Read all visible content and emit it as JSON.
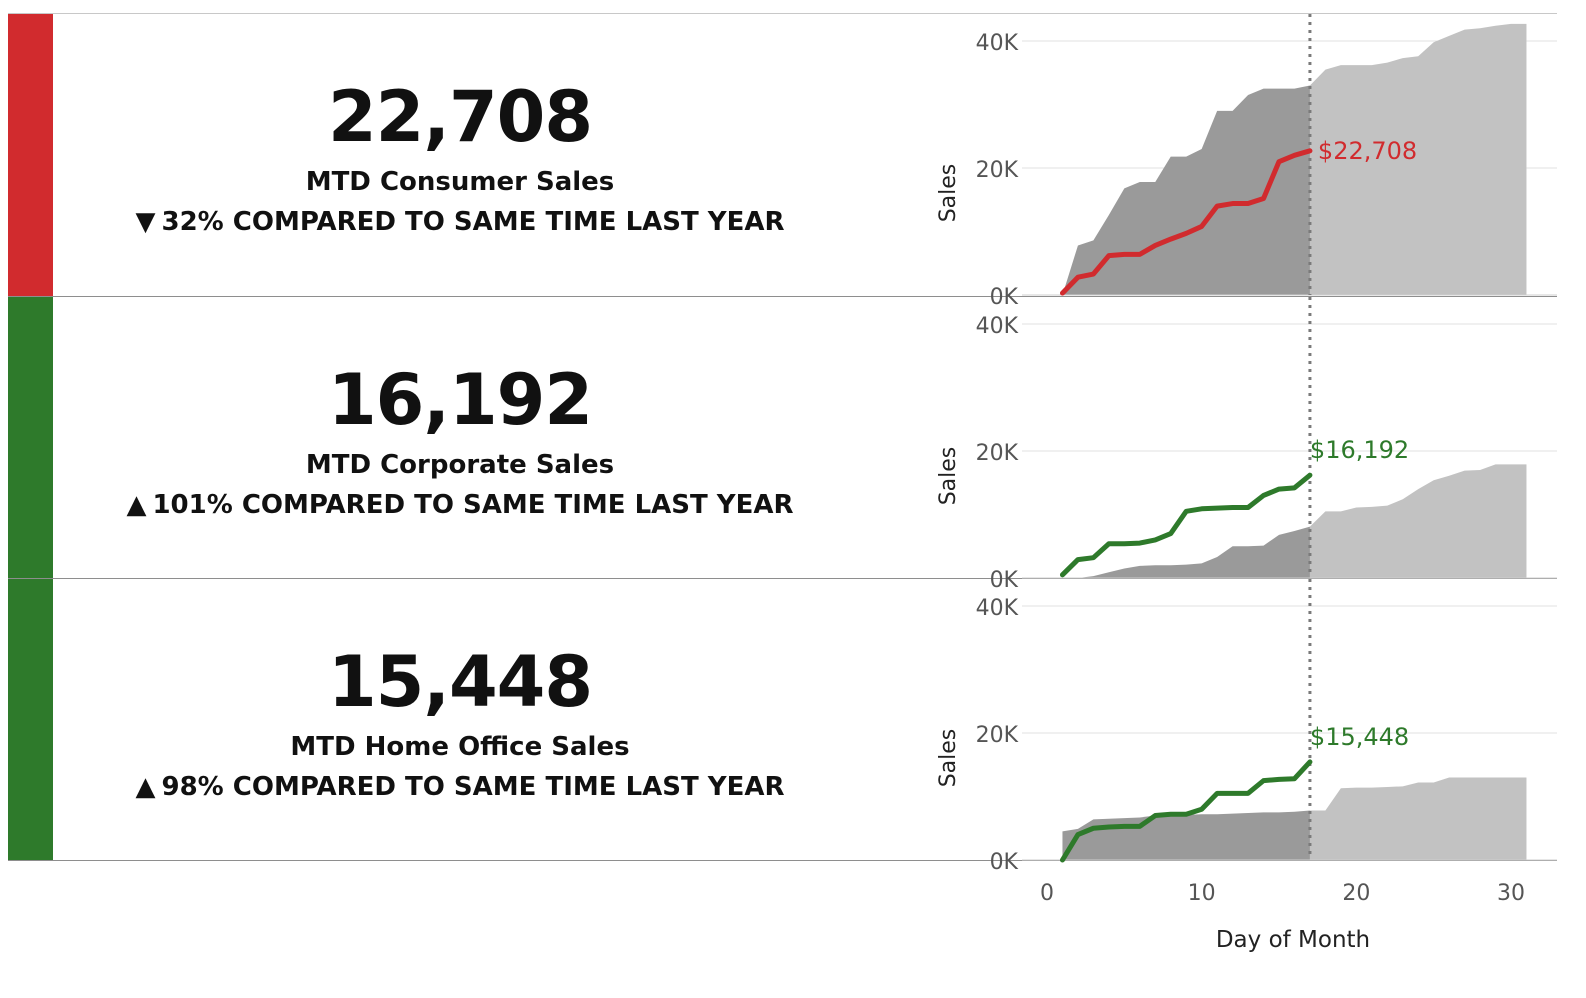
{
  "colors": {
    "negative": "#d12b2e",
    "positive": "#2e7a2b",
    "prior_year_area": "#c2c2c2",
    "prior_year_area_mtd": "#9a9a9a"
  },
  "rows": [
    {
      "value": "22,708",
      "label": "MTD Consumer Sales",
      "arrow": "▼",
      "arrow_icon": "triangle-down-icon",
      "comparison": "32% COMPARED TO SAME TIME LAST YEAR",
      "status": "negative"
    },
    {
      "value": "16,192",
      "label": "MTD Corporate Sales",
      "arrow": "▲",
      "arrow_icon": "triangle-up-icon",
      "comparison": "101% COMPARED TO SAME TIME LAST YEAR",
      "status": "positive"
    },
    {
      "value": "15,448",
      "label": "MTD Home Office Sales",
      "arrow": "▲",
      "arrow_icon": "triangle-up-icon",
      "comparison": "98% COMPARED TO SAME TIME LAST YEAR",
      "status": "positive"
    }
  ],
  "chart_data": [
    {
      "type": "area",
      "ylabel": "Sales",
      "xlabel": "Day of Month",
      "xlim": [
        0,
        31
      ],
      "ylim": [
        0,
        40000
      ],
      "y_ticks": [
        0,
        20000,
        40000
      ],
      "y_tick_labels": [
        "0K",
        "20K",
        "40K"
      ],
      "x_ticks": [
        0,
        10,
        20,
        30
      ],
      "x_tick_labels": [
        "0",
        "10",
        "20",
        "30"
      ],
      "reference_day": 17,
      "end_label": "$22,708",
      "series": [
        {
          "type": "area",
          "x": [
            1,
            2,
            3,
            4,
            5,
            6,
            7,
            8,
            9,
            10,
            11,
            12,
            13,
            14,
            15,
            16,
            17,
            18,
            19,
            20,
            21,
            22,
            23,
            24,
            25,
            26,
            27,
            28,
            29,
            30,
            31
          ],
          "values": [
            0,
            7800,
            8600,
            12600,
            16800,
            17800,
            17800,
            21800,
            21800,
            23000,
            29000,
            29000,
            31500,
            32500,
            32500,
            32500,
            33000,
            35500,
            36200,
            36200,
            36200,
            36600,
            37300,
            37600,
            39800,
            40800,
            41800,
            42000,
            42400,
            42700,
            42700
          ]
        },
        {
          "type": "line",
          "x": [
            1,
            2,
            3,
            4,
            5,
            6,
            7,
            8,
            9,
            10,
            11,
            12,
            13,
            14,
            15,
            16,
            17
          ],
          "values": [
            300,
            2800,
            3300,
            6200,
            6400,
            6400,
            7800,
            8800,
            9700,
            10800,
            14000,
            14400,
            14400,
            15200,
            21000,
            22000,
            22708
          ]
        }
      ]
    },
    {
      "type": "area",
      "ylabel": "Sales",
      "xlabel": "Day of Month",
      "xlim": [
        0,
        31
      ],
      "ylim": [
        0,
        40000
      ],
      "y_ticks": [
        0,
        20000,
        40000
      ],
      "y_tick_labels": [
        "0K",
        "20K",
        "40K"
      ],
      "x_ticks": [
        0,
        10,
        20,
        30
      ],
      "x_tick_labels": [
        "0",
        "10",
        "20",
        "30"
      ],
      "reference_day": 17,
      "end_label": "$16,192",
      "series": [
        {
          "type": "area",
          "x": [
            1,
            2,
            3,
            4,
            5,
            6,
            7,
            8,
            9,
            10,
            11,
            12,
            13,
            14,
            15,
            16,
            17,
            18,
            19,
            20,
            21,
            22,
            23,
            24,
            25,
            26,
            27,
            28,
            29,
            30,
            31
          ],
          "values": [
            0,
            0,
            300,
            900,
            1500,
            1900,
            2000,
            2000,
            2100,
            2300,
            3300,
            5000,
            5000,
            5100,
            6800,
            7400,
            8100,
            10500,
            10500,
            11100,
            11200,
            11400,
            12400,
            14000,
            15400,
            16100,
            16900,
            17000,
            17900,
            17900,
            17900
          ]
        },
        {
          "type": "line",
          "x": [
            1,
            2,
            3,
            4,
            5,
            6,
            7,
            8,
            9,
            10,
            11,
            12,
            13,
            14,
            15,
            16,
            17
          ],
          "values": [
            500,
            2900,
            3200,
            5400,
            5400,
            5500,
            6000,
            7000,
            10500,
            10900,
            11000,
            11100,
            11100,
            13000,
            14000,
            14200,
            16192
          ]
        }
      ]
    },
    {
      "type": "area",
      "ylabel": "Sales",
      "xlabel": "Day of Month",
      "xlim": [
        0,
        31
      ],
      "ylim": [
        0,
        40000
      ],
      "y_ticks": [
        0,
        20000,
        40000
      ],
      "y_tick_labels": [
        "0K",
        "20K",
        "40K"
      ],
      "x_ticks": [
        0,
        10,
        20,
        30
      ],
      "x_tick_labels": [
        "0",
        "10",
        "20",
        "30"
      ],
      "reference_day": 17,
      "end_label": "$15,448",
      "series": [
        {
          "type": "area",
          "x": [
            1,
            2,
            3,
            4,
            5,
            6,
            7,
            8,
            9,
            10,
            11,
            12,
            13,
            14,
            15,
            16,
            17,
            18,
            19,
            20,
            21,
            22,
            23,
            24,
            25,
            26,
            27,
            28,
            29,
            30,
            31
          ],
          "values": [
            4500,
            4900,
            6400,
            6500,
            6600,
            6700,
            7000,
            7000,
            7100,
            7200,
            7200,
            7300,
            7400,
            7500,
            7500,
            7600,
            7800,
            7800,
            11300,
            11400,
            11400,
            11500,
            11600,
            12200,
            12200,
            13000,
            13000,
            13000,
            13000,
            13000,
            13000
          ]
        },
        {
          "type": "line",
          "x": [
            1,
            2,
            3,
            4,
            5,
            6,
            7,
            8,
            9,
            10,
            11,
            12,
            13,
            14,
            15,
            16,
            17
          ],
          "values": [
            0,
            4000,
            5000,
            5200,
            5300,
            5300,
            7000,
            7200,
            7200,
            8000,
            10500,
            10500,
            10500,
            12500,
            12700,
            12800,
            15448
          ]
        }
      ]
    }
  ]
}
